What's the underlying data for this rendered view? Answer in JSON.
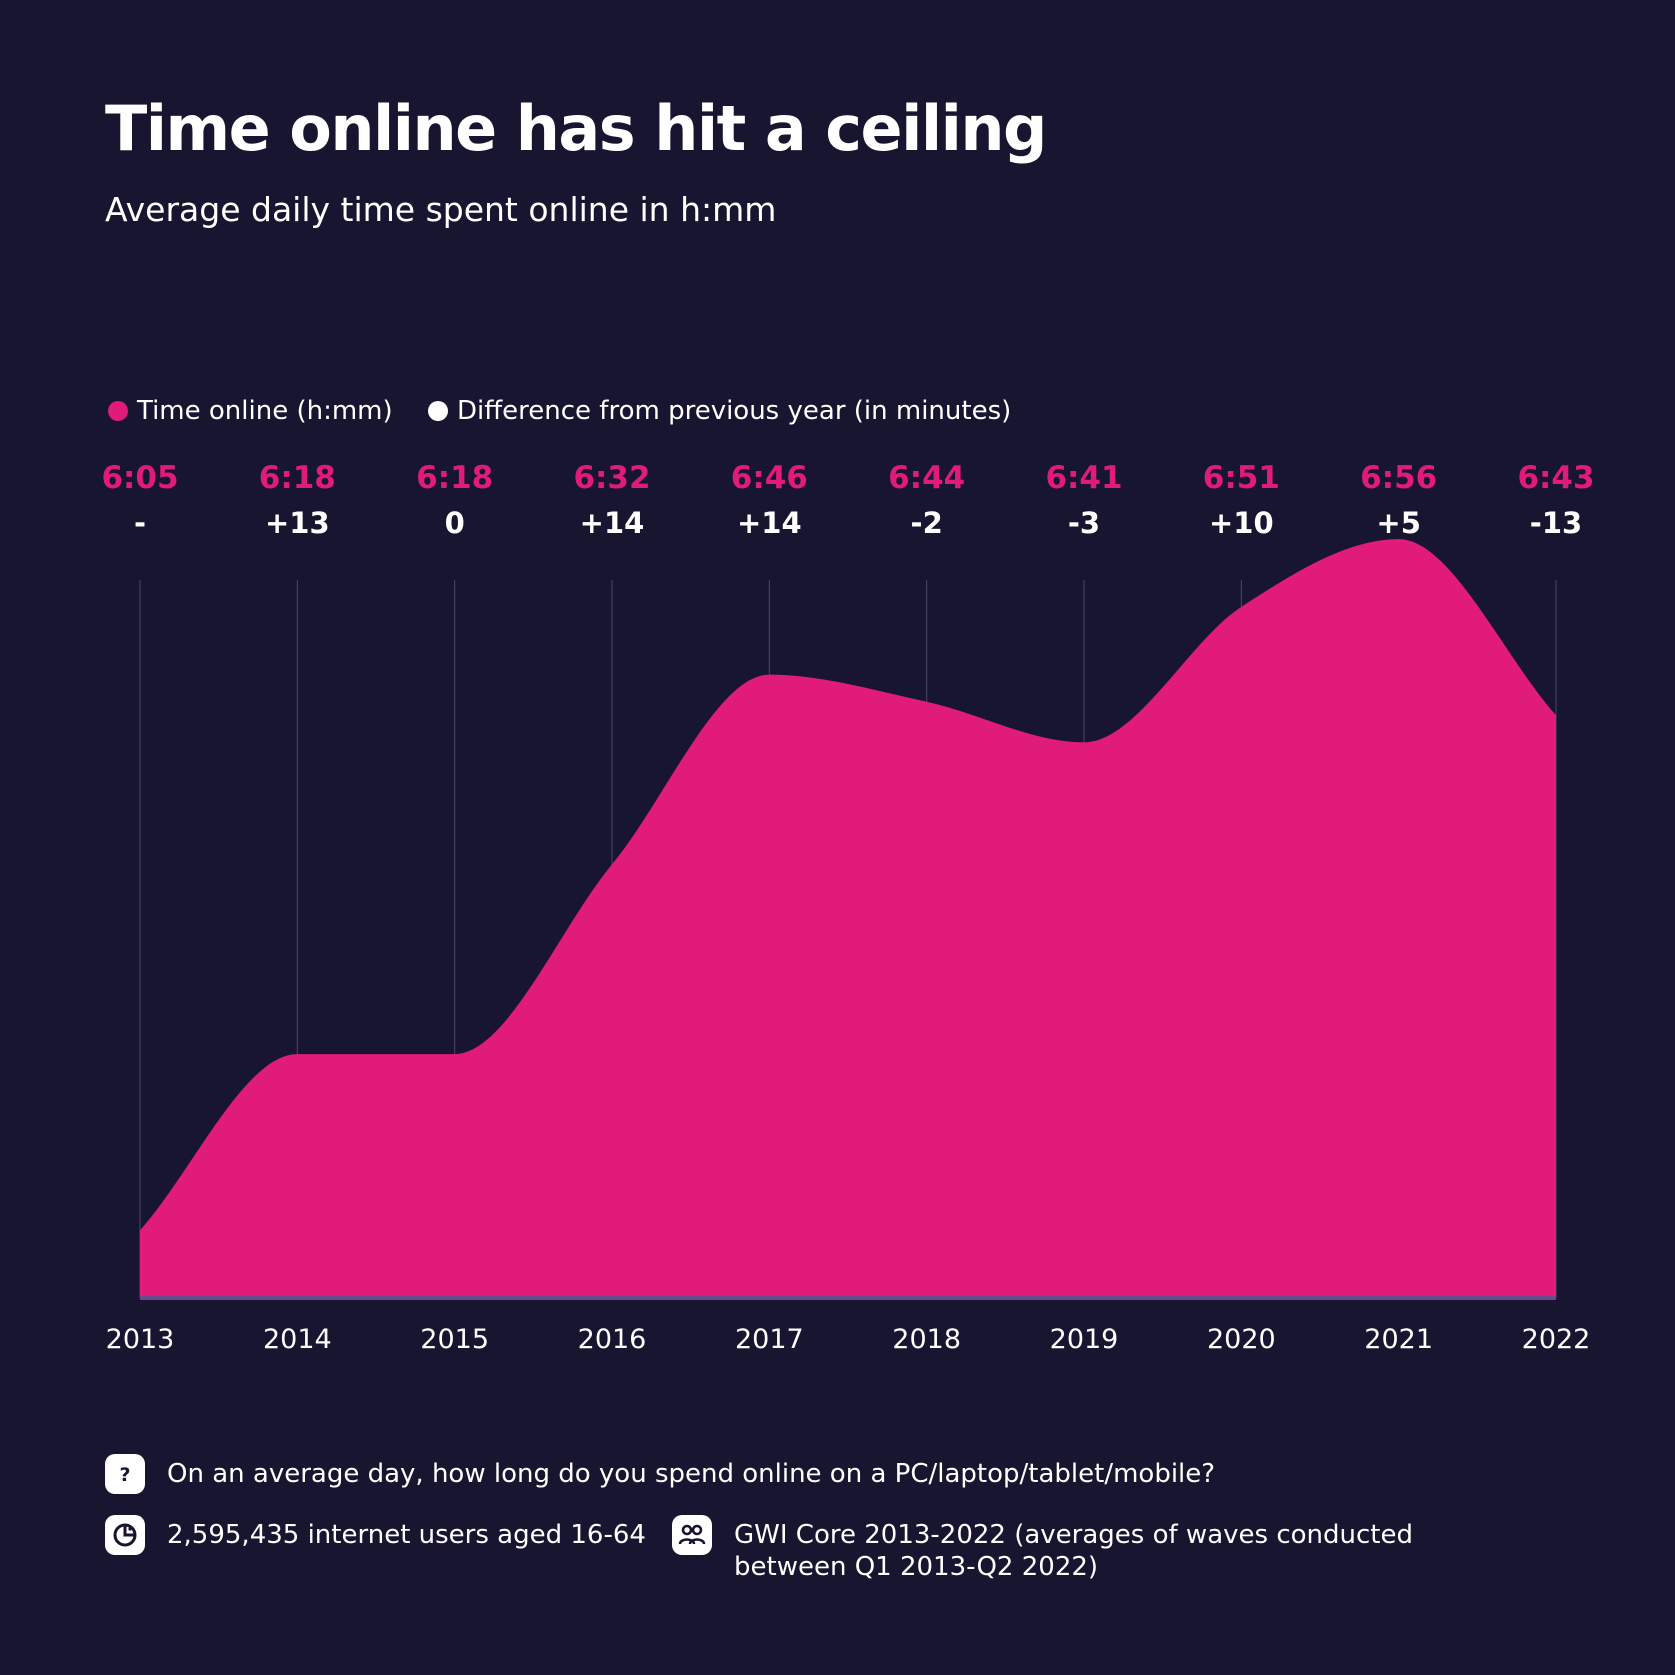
{
  "title": "Time online has hit a ceiling",
  "subtitle": "Average daily time spent online in h:mm",
  "legend": [
    {
      "label": "Time online (h:mm)",
      "color": "#e01b79"
    },
    {
      "label": "Difference from previous year (in minutes)",
      "color": "#ffffff"
    }
  ],
  "colors": {
    "background": "#181530",
    "accent": "#e01b79",
    "grid": "#4a4766",
    "baseline": "#6b4a8c"
  },
  "chart_data": {
    "type": "area",
    "x": [
      "2013",
      "2014",
      "2015",
      "2016",
      "2017",
      "2018",
      "2019",
      "2020",
      "2021",
      "2022"
    ],
    "value_labels": [
      "6:05",
      "6:18",
      "6:18",
      "6:32",
      "6:46",
      "6:44",
      "6:41",
      "6:51",
      "6:56",
      "6:43"
    ],
    "values_minutes": [
      365,
      378,
      378,
      392,
      406,
      404,
      401,
      411,
      416,
      403
    ],
    "diff_labels": [
      "-",
      "+13",
      "0",
      "+14",
      "+14",
      "-2",
      "-3",
      "+10",
      "+5",
      "-13"
    ],
    "ylim": [
      360,
      418
    ],
    "grid": true,
    "legend_position": "top-left"
  },
  "footer": {
    "question": "On an average day, how long do you spend online on a PC/laptop/tablet/mobile?",
    "sample": "2,595,435 internet users aged 16-64",
    "source": "GWI Core 2013-2022 (averages of waves conducted between Q1 2013-Q2 2022)",
    "icons": {
      "question": "question-icon",
      "sample": "pie-chart-icon",
      "source": "people-icon"
    }
  }
}
